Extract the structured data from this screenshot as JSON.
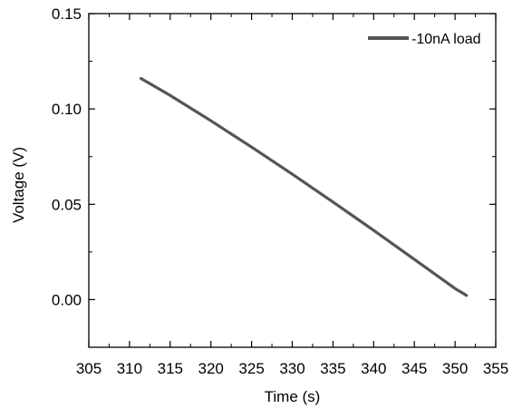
{
  "chart_data": {
    "type": "line",
    "title": "",
    "xlabel": "Time (s)",
    "ylabel": "Voltage (V)",
    "xlim": [
      305,
      355
    ],
    "ylim": [
      -0.025,
      0.15
    ],
    "x_ticks": [
      305,
      310,
      315,
      320,
      325,
      330,
      335,
      340,
      345,
      350,
      355
    ],
    "x_tick_labels": [
      "305",
      "310",
      "315",
      "320",
      "325",
      "330",
      "335",
      "340",
      "345",
      "350",
      "355"
    ],
    "y_ticks": [
      0.0,
      0.05,
      0.1,
      0.15
    ],
    "y_tick_labels": [
      "0.00",
      "0.05",
      "0.10",
      "0.15"
    ],
    "grid": false,
    "legend_position": "top-right",
    "series": [
      {
        "name": "-10nA load",
        "color": "#555555",
        "x": [
          311.4,
          315,
          320,
          325,
          330,
          335,
          340,
          345,
          350,
          351.4
        ],
        "y": [
          0.116,
          0.1071,
          0.0938,
          0.08,
          0.0658,
          0.0512,
          0.0363,
          0.0211,
          0.0058,
          0.0022
        ]
      }
    ]
  }
}
